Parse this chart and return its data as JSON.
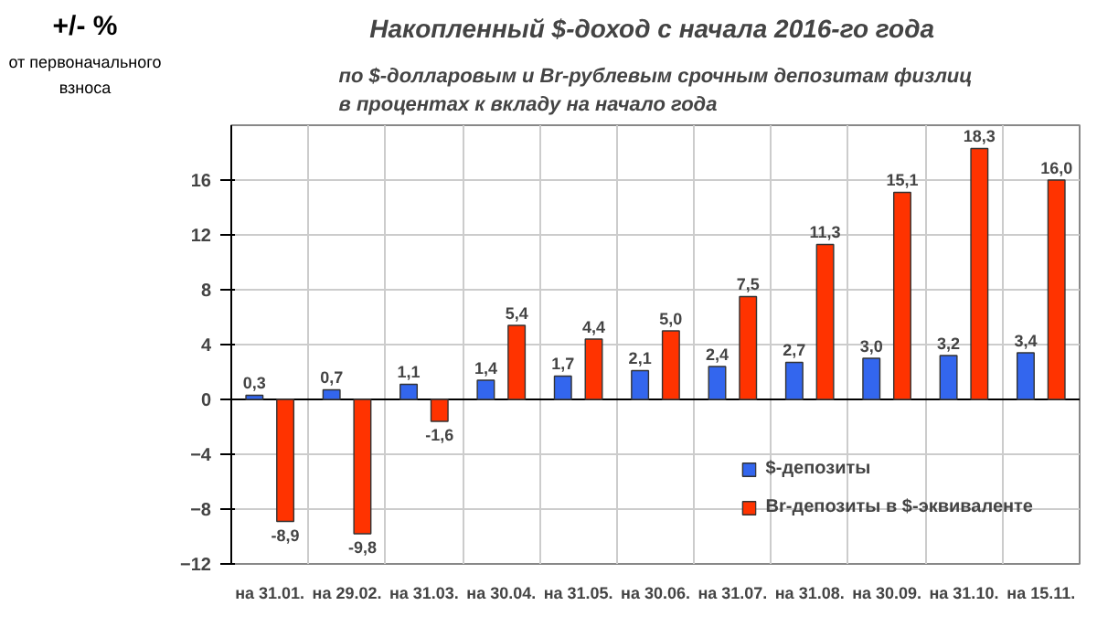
{
  "chart_data": {
    "type": "bar",
    "title": "Накопленный  $-доход с начала 2016-го года",
    "subtitle": "по $-долларовым и Br-рублевым срочным депозитам физлиц\nв процентах к вкладу на начало года",
    "ylabel": "+/- %",
    "annotations": [
      "от первоначального\nвзноса"
    ],
    "categories": [
      "на 31.01.",
      "на 29.02.",
      "на 31.03.",
      "на 30.04.",
      "на 31.05.",
      "на 30.06.",
      "на 31.07.",
      "на 31.08.",
      "на 30.09.",
      "на 31.10.",
      "на 15.11."
    ],
    "series": [
      {
        "name": "$-депозиты",
        "color": "#3366ee",
        "values": [
          0.3,
          0.7,
          1.1,
          1.4,
          1.7,
          2.1,
          2.4,
          2.7,
          3.0,
          3.2,
          3.4
        ],
        "value_labels": [
          "0,3",
          "0,7",
          "1,1",
          "1,4",
          "1,7",
          "2,1",
          "2,4",
          "2,7",
          "3,0",
          "3,2",
          "3,4"
        ]
      },
      {
        "name": "Br-депозиты в $-эквиваленте",
        "color": "#ff3300",
        "values": [
          -8.9,
          -9.8,
          -1.6,
          5.4,
          4.4,
          5.0,
          7.5,
          11.3,
          15.1,
          18.3,
          16.0
        ],
        "value_labels": [
          "-8,9",
          "-9,8",
          "-1,6",
          "5,4",
          "4,4",
          "5,0",
          "7,5",
          "11,3",
          "15,1",
          "18,3",
          "16,0"
        ]
      }
    ],
    "ylim": [
      -12,
      20
    ],
    "yticks": [
      -12,
      -8,
      -4,
      0,
      4,
      8,
      12,
      16
    ],
    "grid": true,
    "legend": "bottom right"
  }
}
